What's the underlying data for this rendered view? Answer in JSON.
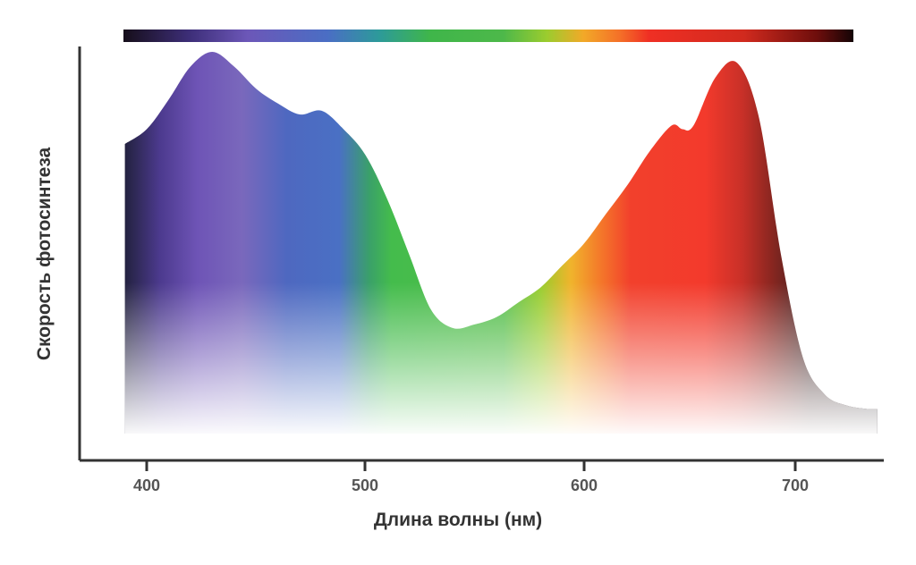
{
  "chart_data": {
    "type": "area",
    "xlabel": "Длина волны (нм)",
    "ylabel": "Скорость фотосинтеза",
    "xlim": [
      370,
      740
    ],
    "ylim": [
      0,
      1
    ],
    "x_ticks": [
      "400",
      "500",
      "600",
      "700"
    ],
    "grid": false,
    "legend": "none",
    "spectrum_bar": true,
    "x": [
      390,
      400,
      410,
      420,
      430,
      440,
      450,
      460,
      470,
      480,
      490,
      500,
      510,
      520,
      530,
      540,
      550,
      560,
      570,
      580,
      590,
      600,
      610,
      620,
      630,
      640,
      645,
      650,
      660,
      670,
      680,
      690,
      700,
      710,
      720,
      730
    ],
    "values": [
      0.75,
      0.79,
      0.87,
      0.96,
      1.0,
      0.96,
      0.9,
      0.86,
      0.83,
      0.84,
      0.79,
      0.72,
      0.6,
      0.45,
      0.3,
      0.25,
      0.26,
      0.28,
      0.32,
      0.36,
      0.42,
      0.48,
      0.56,
      0.64,
      0.73,
      0.8,
      0.79,
      0.8,
      0.93,
      0.97,
      0.82,
      0.45,
      0.17,
      0.07,
      0.04,
      0.03
    ],
    "colors": {
      "axis": "#333333",
      "spectrum_stops": [
        "#160e1a",
        "#3d2e78",
        "#6c57b8",
        "#4a6ec4",
        "#2d9a9a",
        "#3fb64a",
        "#4db84a",
        "#9bcc2e",
        "#f2a928",
        "#f47028",
        "#ef2f24",
        "#d12a1e",
        "#6e0e0c",
        "#140406"
      ]
    }
  }
}
